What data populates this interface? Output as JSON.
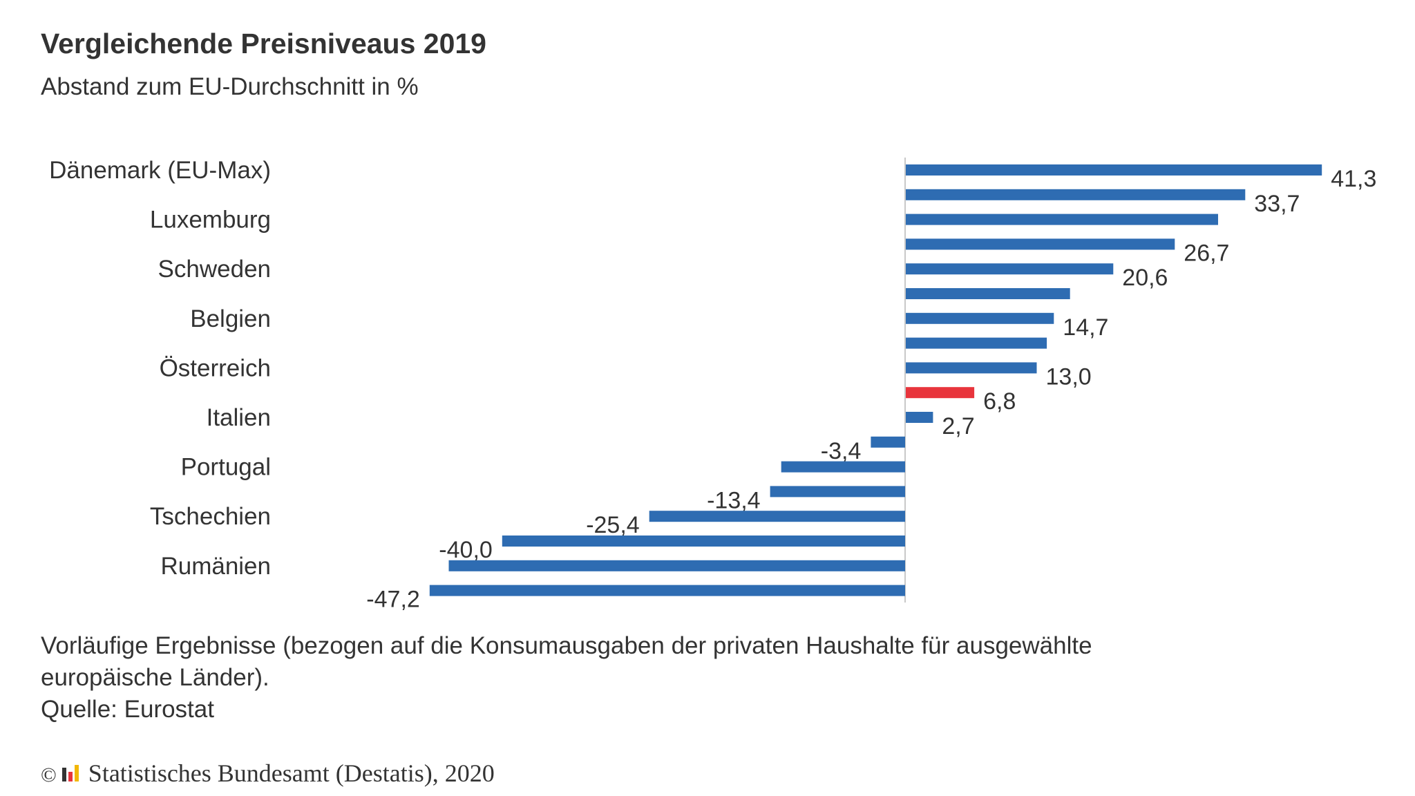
{
  "header": {
    "title": "Vergleichende Preisniveaus 2019",
    "subtitle": "Abstand zum EU-Durchschnitt in %"
  },
  "chart_data": {
    "type": "bar",
    "orientation": "horizontal",
    "categories": [
      "Dänemark (EU-Max)",
      "",
      "Luxemburg",
      "",
      "Schweden",
      "",
      "Belgien",
      "",
      "Österreich",
      "",
      "Italien",
      "",
      "Portugal",
      "",
      "Tschechien",
      "",
      "Rumänien",
      ""
    ],
    "values": [
      41.3,
      33.7,
      31.0,
      26.7,
      20.6,
      16.3,
      14.7,
      14.0,
      13.0,
      6.8,
      2.7,
      -3.4,
      -12.3,
      -13.4,
      -25.4,
      -40.0,
      -45.3,
      -47.2
    ],
    "data_labels": [
      "41,3",
      "33,7",
      "",
      "26,7",
      "20,6",
      "",
      "14,7",
      "",
      "13,0",
      "6,8",
      "2,7",
      "-3,4",
      "",
      "-13,4",
      "-25,4",
      "-40,0",
      "",
      "-47,2"
    ],
    "highlight_index": 9,
    "colors": {
      "bar": "#2e6cb2",
      "highlight": "#e8343c",
      "axis": "#c8c8c8"
    },
    "xlim": [
      -50,
      45
    ],
    "grid": false,
    "legend": "none"
  },
  "footnote": {
    "line1": "Vorläufige Ergebnisse (bezogen auf die Konsumausgaben der privaten Haushalte für ausgewählte",
    "line2": "europäische Länder).",
    "line3": "Quelle: Eurostat"
  },
  "copyright": {
    "symbol": "©",
    "logo_icon": "destatis-logo-icon",
    "text": "Statistisches Bundesamt (Destatis), 2020"
  }
}
